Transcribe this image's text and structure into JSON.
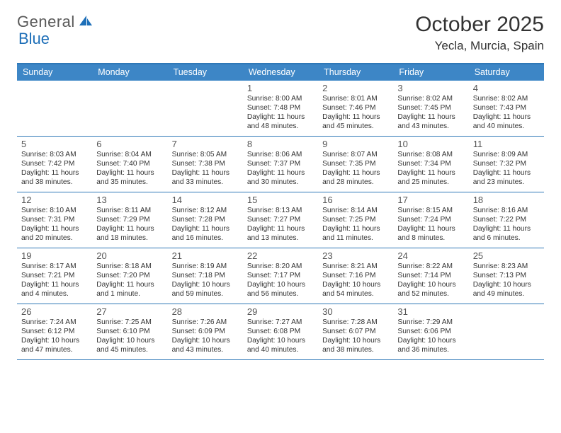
{
  "brand": {
    "name1": "General",
    "name2": "Blue"
  },
  "title": "October 2025",
  "location": "Yecla, Murcia, Spain",
  "colors": {
    "header_bg": "#3d86c6",
    "header_border": "#2f78b7",
    "row_border": "#2f78b7",
    "text": "#333333",
    "logo_gray": "#595959",
    "logo_blue": "#1e6fb8"
  },
  "day_names": [
    "Sunday",
    "Monday",
    "Tuesday",
    "Wednesday",
    "Thursday",
    "Friday",
    "Saturday"
  ],
  "weeks": [
    [
      {},
      {},
      {},
      {
        "n": "1",
        "sr": "Sunrise: 8:00 AM",
        "ss": "Sunset: 7:48 PM",
        "d1": "Daylight: 11 hours",
        "d2": "and 48 minutes."
      },
      {
        "n": "2",
        "sr": "Sunrise: 8:01 AM",
        "ss": "Sunset: 7:46 PM",
        "d1": "Daylight: 11 hours",
        "d2": "and 45 minutes."
      },
      {
        "n": "3",
        "sr": "Sunrise: 8:02 AM",
        "ss": "Sunset: 7:45 PM",
        "d1": "Daylight: 11 hours",
        "d2": "and 43 minutes."
      },
      {
        "n": "4",
        "sr": "Sunrise: 8:02 AM",
        "ss": "Sunset: 7:43 PM",
        "d1": "Daylight: 11 hours",
        "d2": "and 40 minutes."
      }
    ],
    [
      {
        "n": "5",
        "sr": "Sunrise: 8:03 AM",
        "ss": "Sunset: 7:42 PM",
        "d1": "Daylight: 11 hours",
        "d2": "and 38 minutes."
      },
      {
        "n": "6",
        "sr": "Sunrise: 8:04 AM",
        "ss": "Sunset: 7:40 PM",
        "d1": "Daylight: 11 hours",
        "d2": "and 35 minutes."
      },
      {
        "n": "7",
        "sr": "Sunrise: 8:05 AM",
        "ss": "Sunset: 7:38 PM",
        "d1": "Daylight: 11 hours",
        "d2": "and 33 minutes."
      },
      {
        "n": "8",
        "sr": "Sunrise: 8:06 AM",
        "ss": "Sunset: 7:37 PM",
        "d1": "Daylight: 11 hours",
        "d2": "and 30 minutes."
      },
      {
        "n": "9",
        "sr": "Sunrise: 8:07 AM",
        "ss": "Sunset: 7:35 PM",
        "d1": "Daylight: 11 hours",
        "d2": "and 28 minutes."
      },
      {
        "n": "10",
        "sr": "Sunrise: 8:08 AM",
        "ss": "Sunset: 7:34 PM",
        "d1": "Daylight: 11 hours",
        "d2": "and 25 minutes."
      },
      {
        "n": "11",
        "sr": "Sunrise: 8:09 AM",
        "ss": "Sunset: 7:32 PM",
        "d1": "Daylight: 11 hours",
        "d2": "and 23 minutes."
      }
    ],
    [
      {
        "n": "12",
        "sr": "Sunrise: 8:10 AM",
        "ss": "Sunset: 7:31 PM",
        "d1": "Daylight: 11 hours",
        "d2": "and 20 minutes."
      },
      {
        "n": "13",
        "sr": "Sunrise: 8:11 AM",
        "ss": "Sunset: 7:29 PM",
        "d1": "Daylight: 11 hours",
        "d2": "and 18 minutes."
      },
      {
        "n": "14",
        "sr": "Sunrise: 8:12 AM",
        "ss": "Sunset: 7:28 PM",
        "d1": "Daylight: 11 hours",
        "d2": "and 16 minutes."
      },
      {
        "n": "15",
        "sr": "Sunrise: 8:13 AM",
        "ss": "Sunset: 7:27 PM",
        "d1": "Daylight: 11 hours",
        "d2": "and 13 minutes."
      },
      {
        "n": "16",
        "sr": "Sunrise: 8:14 AM",
        "ss": "Sunset: 7:25 PM",
        "d1": "Daylight: 11 hours",
        "d2": "and 11 minutes."
      },
      {
        "n": "17",
        "sr": "Sunrise: 8:15 AM",
        "ss": "Sunset: 7:24 PM",
        "d1": "Daylight: 11 hours",
        "d2": "and 8 minutes."
      },
      {
        "n": "18",
        "sr": "Sunrise: 8:16 AM",
        "ss": "Sunset: 7:22 PM",
        "d1": "Daylight: 11 hours",
        "d2": "and 6 minutes."
      }
    ],
    [
      {
        "n": "19",
        "sr": "Sunrise: 8:17 AM",
        "ss": "Sunset: 7:21 PM",
        "d1": "Daylight: 11 hours",
        "d2": "and 4 minutes."
      },
      {
        "n": "20",
        "sr": "Sunrise: 8:18 AM",
        "ss": "Sunset: 7:20 PM",
        "d1": "Daylight: 11 hours",
        "d2": "and 1 minute."
      },
      {
        "n": "21",
        "sr": "Sunrise: 8:19 AM",
        "ss": "Sunset: 7:18 PM",
        "d1": "Daylight: 10 hours",
        "d2": "and 59 minutes."
      },
      {
        "n": "22",
        "sr": "Sunrise: 8:20 AM",
        "ss": "Sunset: 7:17 PM",
        "d1": "Daylight: 10 hours",
        "d2": "and 56 minutes."
      },
      {
        "n": "23",
        "sr": "Sunrise: 8:21 AM",
        "ss": "Sunset: 7:16 PM",
        "d1": "Daylight: 10 hours",
        "d2": "and 54 minutes."
      },
      {
        "n": "24",
        "sr": "Sunrise: 8:22 AM",
        "ss": "Sunset: 7:14 PM",
        "d1": "Daylight: 10 hours",
        "d2": "and 52 minutes."
      },
      {
        "n": "25",
        "sr": "Sunrise: 8:23 AM",
        "ss": "Sunset: 7:13 PM",
        "d1": "Daylight: 10 hours",
        "d2": "and 49 minutes."
      }
    ],
    [
      {
        "n": "26",
        "sr": "Sunrise: 7:24 AM",
        "ss": "Sunset: 6:12 PM",
        "d1": "Daylight: 10 hours",
        "d2": "and 47 minutes."
      },
      {
        "n": "27",
        "sr": "Sunrise: 7:25 AM",
        "ss": "Sunset: 6:10 PM",
        "d1": "Daylight: 10 hours",
        "d2": "and 45 minutes."
      },
      {
        "n": "28",
        "sr": "Sunrise: 7:26 AM",
        "ss": "Sunset: 6:09 PM",
        "d1": "Daylight: 10 hours",
        "d2": "and 43 minutes."
      },
      {
        "n": "29",
        "sr": "Sunrise: 7:27 AM",
        "ss": "Sunset: 6:08 PM",
        "d1": "Daylight: 10 hours",
        "d2": "and 40 minutes."
      },
      {
        "n": "30",
        "sr": "Sunrise: 7:28 AM",
        "ss": "Sunset: 6:07 PM",
        "d1": "Daylight: 10 hours",
        "d2": "and 38 minutes."
      },
      {
        "n": "31",
        "sr": "Sunrise: 7:29 AM",
        "ss": "Sunset: 6:06 PM",
        "d1": "Daylight: 10 hours",
        "d2": "and 36 minutes."
      },
      {}
    ]
  ]
}
